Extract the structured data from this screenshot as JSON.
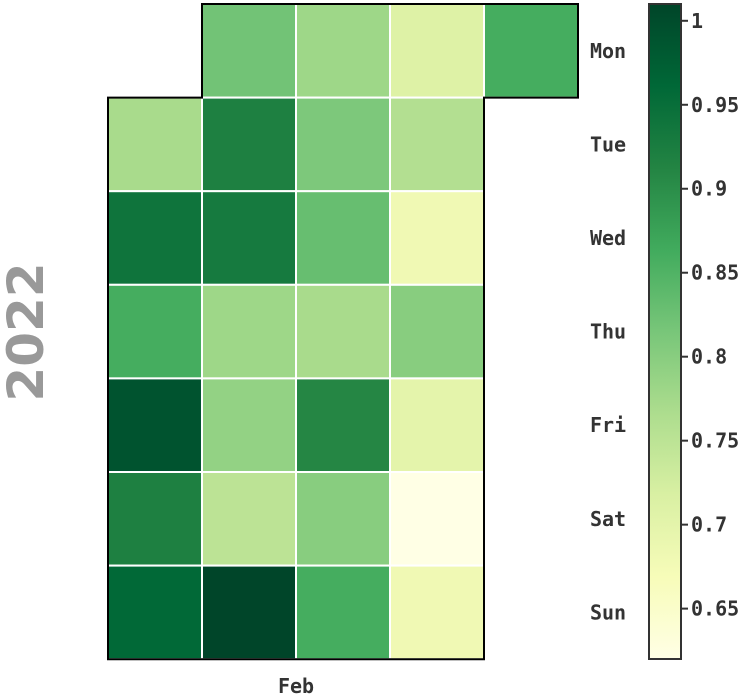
{
  "chart_data": {
    "type": "heatmap",
    "title": "",
    "year": "2022",
    "month_labels": [
      "Feb"
    ],
    "day_labels": [
      "Mon",
      "Tue",
      "Wed",
      "Thu",
      "Fri",
      "Sat",
      "Sun"
    ],
    "weeks": [
      [
        null,
        0.77,
        0.94,
        0.86,
        0.99,
        0.92,
        0.96
      ],
      [
        0.82,
        0.92,
        0.93,
        0.78,
        0.79,
        0.75,
        1.01
      ],
      [
        0.78,
        0.81,
        0.83,
        0.77,
        0.91,
        0.8,
        0.86
      ],
      [
        0.71,
        0.76,
        0.68,
        0.8,
        0.7,
        0.62,
        0.68
      ],
      [
        0.86,
        null,
        null,
        null,
        null,
        null,
        null
      ]
    ],
    "colorbar": {
      "range": [
        0.62,
        1.01
      ],
      "ticks": [
        1,
        0.95,
        0.9,
        0.85,
        0.8,
        0.75,
        0.7,
        0.65
      ],
      "colormap": "YlGn"
    }
  }
}
